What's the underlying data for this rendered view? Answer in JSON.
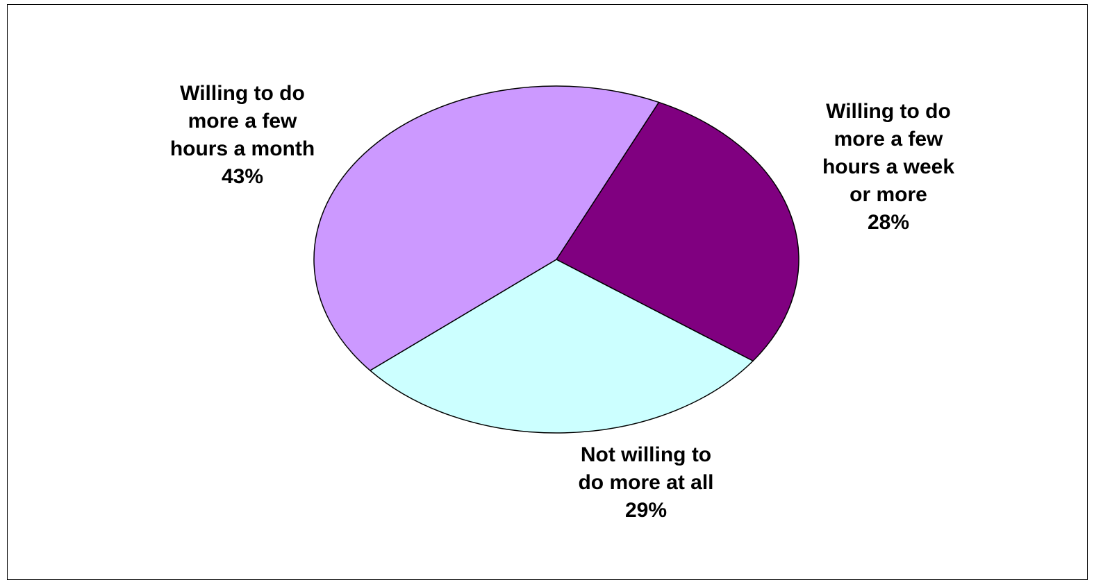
{
  "chart_data": {
    "type": "pie",
    "title": "",
    "start_angle_deg": -65,
    "direction": "clockwise",
    "slices": [
      {
        "label_lines": [
          "Willing to do",
          "more a few",
          "hours a week",
          "or more"
        ],
        "percent_label": "28%",
        "value": 28,
        "color": "#800080"
      },
      {
        "label_lines": [
          "Not willing to",
          "do more at all"
        ],
        "percent_label": "29%",
        "value": 29,
        "color": "#CCFFFF"
      },
      {
        "label_lines": [
          "Willing to do",
          "more a few",
          "hours a month"
        ],
        "percent_label": "43%",
        "value": 43,
        "color": "#CC99FF"
      }
    ],
    "legend": "none"
  }
}
